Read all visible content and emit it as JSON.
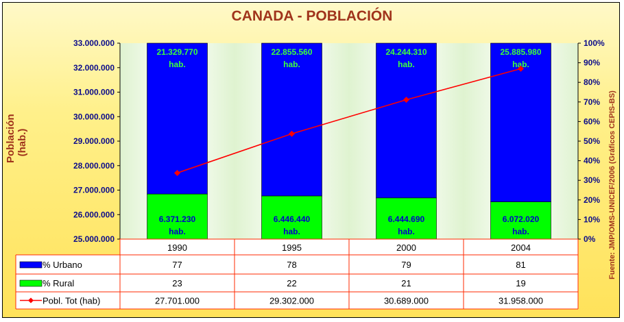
{
  "chart_data": {
    "type": "bar",
    "title": "CANADA  -  POBLACIÓN",
    "ylabel_line1": "Población",
    "ylabel_line2": "(hab.)",
    "source": "Fuente: JMP/OMS-UNICEF/2006 (Gráficos CEPIS-BS)",
    "categories": [
      "1990",
      "1995",
      "2000",
      "2004"
    ],
    "left_ylim": [
      25000000,
      33000000
    ],
    "right_ylim": [
      0,
      100
    ],
    "left_ticks": [
      "25.000.000",
      "26.000.000",
      "27.000.000",
      "28.000.000",
      "29.000.000",
      "30.000.000",
      "31.000.000",
      "32.000.000",
      "33.000.000"
    ],
    "right_ticks": [
      "0%",
      "10%",
      "20%",
      "30%",
      "40%",
      "50%",
      "60%",
      "70%",
      "80%",
      "90%",
      "100%"
    ],
    "series": [
      {
        "name": "% Urbano",
        "color": "#0000ff",
        "values": [
          77,
          78,
          79,
          81
        ],
        "table_values": [
          "77",
          "78",
          "79",
          "81"
        ],
        "bar_labels": [
          "21.329.770",
          "22.855.560",
          "24.244.310",
          "25.885.980"
        ]
      },
      {
        "name": "% Rural",
        "color": "#00ff00",
        "values": [
          23,
          22,
          21,
          19
        ],
        "table_values": [
          "23",
          "22",
          "21",
          "19"
        ],
        "bar_labels": [
          "6.371.230",
          "6.446.440",
          "6.444.690",
          "6.072.020"
        ]
      },
      {
        "name": "Pobl. Tot (hab)",
        "color": "#ff0000",
        "values": [
          27701000,
          29302000,
          30689000,
          31958000
        ],
        "table_values": [
          "27.701.000",
          "29.302.000",
          "30.689.000",
          "31.958.000"
        ]
      }
    ],
    "unit_label": "hab.",
    "grid": false,
    "legend": "table-bottom"
  }
}
